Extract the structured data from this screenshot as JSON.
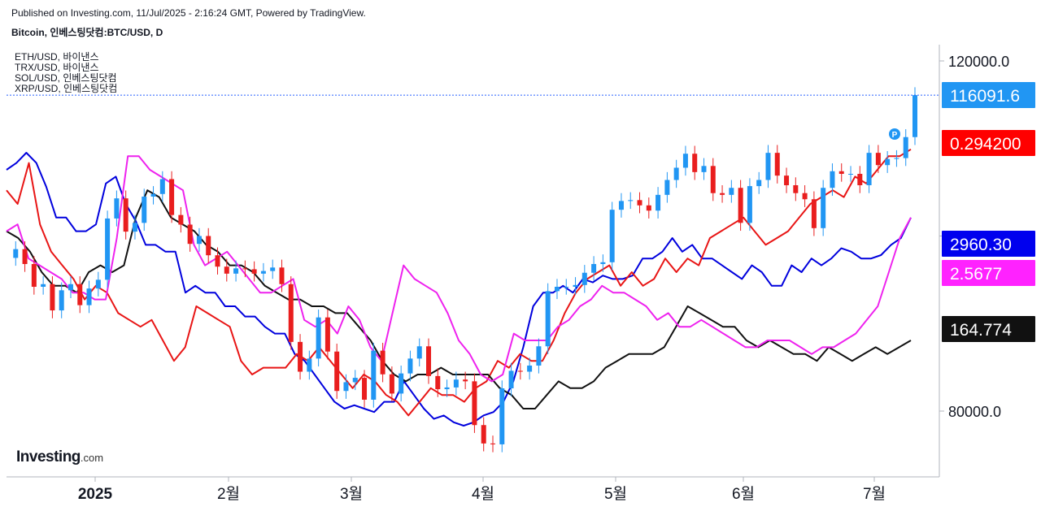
{
  "header": {
    "published": "Published on Investing.com, 11/Jul/2025 - 2:16:24 GMT, Powered by TradingView.",
    "title": "Bitcoin, 인베스팅닷컴:BTC/USD, D"
  },
  "legend": [
    "ETH/USD, 바이낸스",
    "TRX/USD, 바이낸스",
    "SOL/USD, 인베스팅닷컴",
    "XRP/USD, 인베스팅닷컴"
  ],
  "logo": {
    "name": "Investing",
    "suffix": ".com"
  },
  "colors": {
    "up": "#2196f3",
    "down": "#e91e1e",
    "eth": "#0000dd",
    "trx": "#e81515",
    "sol": "#111111",
    "xrp": "#ee22ee",
    "price_line": "#2962ff"
  },
  "chart_data": {
    "type": "line",
    "x_ticks": [
      "2025",
      "2월",
      "3월",
      "4월",
      "5월",
      "6월",
      "7월"
    ],
    "y_ticks": [
      "120000.0",
      "100000.0",
      "80000.0"
    ],
    "ylim": [
      74000,
      122000
    ],
    "price_labels": [
      {
        "series": "BTC/USD",
        "text": "116091.6",
        "color": "#2196f3",
        "text_color": "#ffffff"
      },
      {
        "series": "TRX/USD",
        "text": "0.294200",
        "color": "#ff0000",
        "text_color": "#ffffff"
      },
      {
        "series": "ETH/USD",
        "text": "2960.30",
        "color": "#0000ee",
        "text_color": "#ffffff"
      },
      {
        "series": "XRP/USD",
        "text": "2.5677",
        "color": "#ff22ff",
        "text_color": "#ffffff"
      },
      {
        "series": "SOL/USD",
        "text": "164.774",
        "color": "#111111",
        "text_color": "#ffffff"
      }
    ],
    "btc": {
      "name": "BTC/USD",
      "last": 116091.6,
      "points": [
        [
          0,
          97500
        ],
        [
          3,
          98500
        ],
        [
          6,
          96800
        ],
        [
          9,
          94200
        ],
        [
          12,
          94500
        ],
        [
          15,
          91500
        ],
        [
          18,
          93800
        ],
        [
          21,
          94500
        ],
        [
          24,
          92100
        ],
        [
          27,
          94000
        ],
        [
          30,
          95000
        ],
        [
          33,
          102000
        ],
        [
          36,
          104300
        ],
        [
          39,
          100500
        ],
        [
          42,
          101500
        ],
        [
          45,
          104500
        ],
        [
          48,
          104800
        ],
        [
          51,
          106500
        ],
        [
          54,
          102400
        ],
        [
          57,
          101300
        ],
        [
          60,
          99100
        ],
        [
          63,
          100000
        ],
        [
          66,
          97800
        ],
        [
          69,
          96500
        ],
        [
          72,
          95700
        ],
        [
          75,
          96300
        ],
        [
          78,
          96200
        ],
        [
          81,
          95700
        ],
        [
          84,
          96000
        ],
        [
          87,
          96400
        ],
        [
          90,
          94500
        ],
        [
          93,
          87900
        ],
        [
          96,
          84500
        ],
        [
          99,
          86000
        ],
        [
          102,
          90700
        ],
        [
          105,
          86800
        ],
        [
          108,
          82300
        ],
        [
          111,
          83300
        ],
        [
          114,
          83800
        ],
        [
          117,
          81300
        ],
        [
          120,
          86900
        ],
        [
          123,
          84200
        ],
        [
          126,
          82000
        ],
        [
          129,
          84300
        ],
        [
          132,
          86000
        ],
        [
          135,
          87400
        ],
        [
          138,
          84000
        ],
        [
          141,
          82500
        ],
        [
          144,
          82700
        ],
        [
          147,
          83600
        ],
        [
          150,
          83400
        ],
        [
          153,
          78400
        ],
        [
          156,
          76300
        ],
        [
          159,
          76200
        ],
        [
          162,
          82600
        ],
        [
          165,
          84600
        ],
        [
          168,
          84500
        ],
        [
          171,
          85200
        ],
        [
          174,
          87400
        ],
        [
          177,
          93700
        ],
        [
          180,
          94200
        ],
        [
          183,
          94200
        ],
        [
          186,
          94400
        ],
        [
          189,
          95800
        ],
        [
          192,
          96800
        ],
        [
          195,
          97000
        ],
        [
          198,
          103000
        ],
        [
          201,
          104000
        ],
        [
          204,
          104100
        ],
        [
          207,
          103500
        ],
        [
          210,
          102900
        ],
        [
          213,
          104700
        ],
        [
          216,
          106400
        ],
        [
          219,
          107800
        ],
        [
          222,
          109400
        ],
        [
          225,
          107300
        ],
        [
          228,
          108000
        ],
        [
          231,
          104900
        ],
        [
          234,
          104700
        ],
        [
          237,
          105500
        ],
        [
          240,
          101500
        ],
        [
          243,
          105700
        ],
        [
          246,
          106400
        ],
        [
          249,
          109500
        ],
        [
          252,
          106900
        ],
        [
          255,
          105800
        ],
        [
          258,
          104900
        ],
        [
          261,
          104200
        ],
        [
          264,
          100900
        ],
        [
          267,
          105500
        ],
        [
          270,
          107400
        ],
        [
          273,
          107100
        ],
        [
          276,
          107100
        ],
        [
          279,
          105800
        ],
        [
          282,
          109500
        ],
        [
          285,
          108100
        ],
        [
          288,
          108800
        ],
        [
          291,
          108900
        ],
        [
          294,
          111300
        ],
        [
          297,
          116091.6
        ]
      ],
      "x_span": [
        0,
        297
      ]
    },
    "series": [
      {
        "name": "ETH/USD",
        "color": "#0000dd",
        "values": [
          80,
          82,
          85,
          82,
          75,
          66,
          66,
          62,
          62,
          64,
          76,
          78,
          70,
          65,
          58,
          58,
          56,
          56,
          44,
          46,
          44,
          44,
          40,
          40,
          37,
          37,
          34,
          32,
          32,
          26,
          24,
          20,
          16,
          12,
          10,
          11,
          10,
          9,
          12,
          12,
          18,
          14,
          10,
          7,
          8,
          6,
          5,
          6,
          8,
          9,
          12,
          18,
          28,
          40,
          44,
          44,
          46,
          44,
          48,
          47,
          49,
          48,
          48,
          49,
          54,
          54,
          56,
          60,
          56,
          58,
          54,
          54,
          52,
          50,
          48,
          52,
          50,
          46,
          46,
          52,
          50,
          54,
          52,
          54,
          57,
          56,
          54,
          54,
          55,
          58,
          60,
          66
        ]
      },
      {
        "name": "TRX/USD",
        "color": "#e81515",
        "values": [
          74,
          70,
          82,
          64,
          56,
          52,
          48,
          42,
          46,
          44,
          38,
          36,
          34,
          36,
          30,
          24,
          28,
          40,
          38,
          36,
          34,
          24,
          20,
          22,
          22,
          22,
          26,
          24,
          28,
          24,
          20,
          16,
          20,
          18,
          14,
          12,
          8,
          12,
          16,
          14,
          14,
          12,
          16,
          18,
          24,
          22,
          26,
          24,
          24,
          30,
          38,
          44,
          48,
          50,
          52,
          46,
          50,
          46,
          48,
          54,
          50,
          54,
          52,
          60,
          62,
          64,
          66,
          62,
          58,
          60,
          62,
          66,
          70,
          72,
          74,
          72,
          78,
          76,
          80,
          84,
          84,
          86
        ]
      },
      {
        "name": "SOL/USD",
        "color": "#111111",
        "values": [
          62,
          60,
          56,
          50,
          46,
          46,
          44,
          50,
          52,
          50,
          52,
          66,
          74,
          72,
          66,
          64,
          62,
          58,
          56,
          52,
          52,
          50,
          46,
          44,
          42,
          42,
          40,
          40,
          38,
          38,
          34,
          30,
          24,
          20,
          18,
          20,
          20,
          22,
          20,
          20,
          20,
          20,
          16,
          14,
          10,
          10,
          14,
          18,
          16,
          16,
          18,
          22,
          24,
          26,
          26,
          26,
          28,
          34,
          40,
          38,
          36,
          34,
          34,
          30,
          28,
          30,
          28,
          26,
          26,
          24,
          28,
          26,
          24,
          26,
          28,
          26,
          28,
          30
        ]
      },
      {
        "name": "XRP/USD",
        "color": "#ee22ee",
        "values": [
          62,
          64,
          54,
          52,
          50,
          48,
          44,
          44,
          42,
          42,
          60,
          84,
          84,
          80,
          78,
          76,
          74,
          58,
          52,
          54,
          56,
          52,
          48,
          44,
          44,
          46,
          48,
          36,
          34,
          36,
          32,
          40,
          36,
          28,
          24,
          38,
          52,
          48,
          46,
          44,
          38,
          30,
          26,
          20,
          18,
          20,
          32,
          30,
          30,
          30,
          34,
          36,
          40,
          42,
          46,
          44,
          44,
          42,
          40,
          36,
          38,
          34,
          34,
          36,
          34,
          32,
          30,
          28,
          28,
          30,
          30,
          30,
          28,
          26,
          28,
          28,
          30,
          32,
          36,
          40,
          50,
          60,
          66
        ]
      }
    ]
  }
}
